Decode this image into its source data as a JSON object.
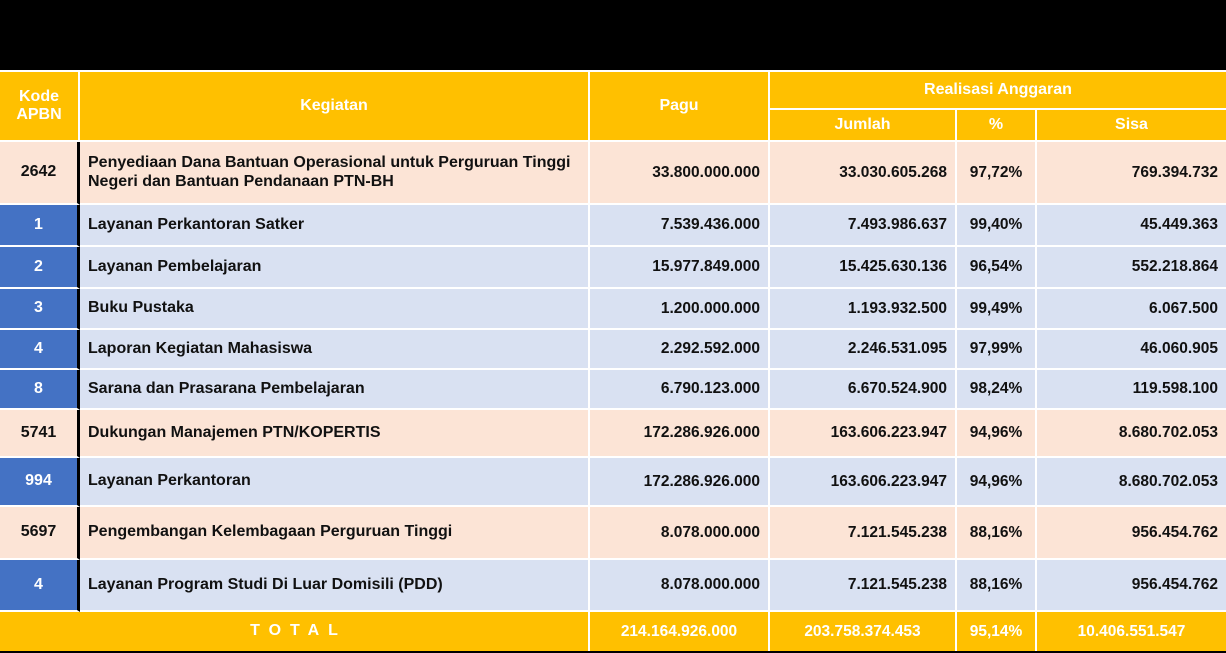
{
  "colors": {
    "header_bg": "#FFC000",
    "group_row_bg": "#FCE4D6",
    "sub_row_bg": "#D9E1F2",
    "sub_code_bg": "#4472C4",
    "total_bg": "#FFC000",
    "page_bg": "#000000"
  },
  "table": {
    "headers": {
      "kode": "Kode APBN",
      "kegiatan": "Kegiatan",
      "pagu": "Pagu",
      "realisasi": "Realisasi Anggaran",
      "jumlah": "Jumlah",
      "persen": "%",
      "sisa": "Sisa"
    },
    "rows": [
      {
        "level": "group",
        "kode": "2642",
        "kegiatan": "Penyediaan Dana Bantuan Operasional untuk Perguruan Tinggi Negeri dan Bantuan Pendanaan PTN-BH",
        "pagu": "33.800.000.000",
        "jumlah": "33.030.605.268",
        "persen": "97,72%",
        "sisa": "769.394.732"
      },
      {
        "level": "sub",
        "kode": "1",
        "kegiatan": "Layanan Perkantoran Satker",
        "pagu": "7.539.436.000",
        "jumlah": "7.493.986.637",
        "persen": "99,40%",
        "sisa": "45.449.363"
      },
      {
        "level": "sub",
        "kode": "2",
        "kegiatan": "Layanan Pembelajaran",
        "pagu": "15.977.849.000",
        "jumlah": "15.425.630.136",
        "persen": "96,54%",
        "sisa": "552.218.864"
      },
      {
        "level": "sub",
        "kode": "3",
        "kegiatan": "Buku Pustaka",
        "pagu": "1.200.000.000",
        "jumlah": "1.193.932.500",
        "persen": "99,49%",
        "sisa": "6.067.500"
      },
      {
        "level": "sub",
        "kode": "4",
        "kegiatan": "Laporan Kegiatan Mahasiswa",
        "pagu": "2.292.592.000",
        "jumlah": "2.246.531.095",
        "persen": "97,99%",
        "sisa": "46.060.905"
      },
      {
        "level": "sub",
        "kode": "8",
        "kegiatan": "Sarana dan Prasarana Pembelajaran",
        "pagu": "6.790.123.000",
        "jumlah": "6.670.524.900",
        "persen": "98,24%",
        "sisa": "119.598.100"
      },
      {
        "level": "group",
        "kode": "5741",
        "kegiatan": "Dukungan Manajemen PTN/KOPERTIS",
        "pagu": "172.286.926.000",
        "jumlah": "163.606.223.947",
        "persen": "94,96%",
        "sisa": "8.680.702.053"
      },
      {
        "level": "sub",
        "kode": "994",
        "kegiatan": "Layanan Perkantoran",
        "pagu": "172.286.926.000",
        "jumlah": "163.606.223.947",
        "persen": "94,96%",
        "sisa": "8.680.702.053"
      },
      {
        "level": "group",
        "kode": "5697",
        "kegiatan": "Pengembangan Kelembagaan Perguruan Tinggi",
        "pagu": "8.078.000.000",
        "jumlah": "7.121.545.238",
        "persen": "88,16%",
        "sisa": "956.454.762"
      },
      {
        "level": "sub",
        "kode": "4",
        "kegiatan": "Layanan Program Studi Di Luar Domisili (PDD)",
        "pagu": "8.078.000.000",
        "jumlah": "7.121.545.238",
        "persen": "88,16%",
        "sisa": "956.454.762"
      }
    ],
    "total": {
      "label": "TOTAL",
      "pagu": "214.164.926.000",
      "jumlah": "203.758.374.453",
      "persen": "95,14%",
      "sisa": "10.406.551.547"
    }
  }
}
